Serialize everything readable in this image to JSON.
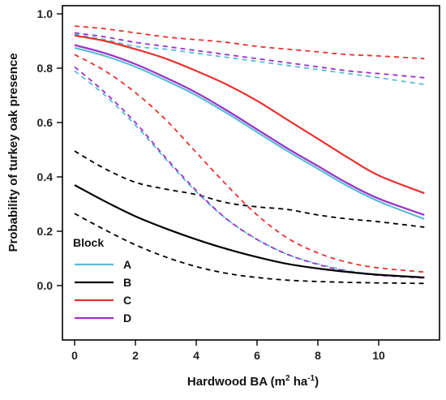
{
  "chart_data": {
    "type": "line",
    "xlabel": {
      "prefix": "Hardwood BA (m",
      "sup1": "2",
      "middle": " ha",
      "sup2": "-1",
      "suffix": ")"
    },
    "ylabel": "Probability of turkey oak presence",
    "xlim": [
      -0.4,
      12
    ],
    "ylim": [
      -0.2,
      1.03
    ],
    "xticks": [
      0,
      2,
      4,
      6,
      8,
      10
    ],
    "yticks": [
      0.0,
      0.2,
      0.4,
      0.6,
      0.8,
      1.0
    ],
    "ytick_labels": [
      "0.0",
      "0.2",
      "0.4",
      "0.6",
      "0.8",
      "1.0"
    ],
    "grid": false,
    "legend": {
      "title": "Block",
      "position": "bottom-left",
      "entries": [
        {
          "label": "A",
          "color": "#5bbcd6"
        },
        {
          "label": "B",
          "color": "#000000"
        },
        {
          "label": "C",
          "color": "#e8312f"
        },
        {
          "label": "D",
          "color": "#9b30c8"
        }
      ]
    },
    "x": [
      0,
      1,
      2,
      3,
      4,
      5,
      6,
      7,
      8,
      9,
      10,
      11.5
    ],
    "series": [
      {
        "name": "A",
        "color": "#5bbcd6",
        "fit": [
          0.875,
          0.845,
          0.805,
          0.755,
          0.7,
          0.635,
          0.565,
          0.495,
          0.43,
          0.365,
          0.31,
          0.245
        ],
        "lower": [
          0.79,
          0.7,
          0.59,
          0.465,
          0.345,
          0.245,
          0.17,
          0.115,
          0.08,
          0.055,
          0.04,
          0.03
        ],
        "upper": [
          0.925,
          0.905,
          0.88,
          0.87,
          0.855,
          0.84,
          0.825,
          0.81,
          0.795,
          0.78,
          0.765,
          0.74
        ]
      },
      {
        "name": "B",
        "color": "#000000",
        "fit": [
          0.37,
          0.31,
          0.255,
          0.21,
          0.17,
          0.135,
          0.105,
          0.08,
          0.063,
          0.05,
          0.04,
          0.03
        ],
        "lower": [
          0.265,
          0.205,
          0.15,
          0.105,
          0.07,
          0.045,
          0.03,
          0.02,
          0.015,
          0.012,
          0.01,
          0.008
        ],
        "upper": [
          0.495,
          0.43,
          0.38,
          0.355,
          0.335,
          0.305,
          0.29,
          0.28,
          0.26,
          0.245,
          0.235,
          0.215
        ]
      },
      {
        "name": "C",
        "color": "#e8312f",
        "fit": [
          0.92,
          0.9,
          0.87,
          0.835,
          0.79,
          0.74,
          0.68,
          0.61,
          0.54,
          0.47,
          0.405,
          0.34
        ],
        "lower": [
          0.85,
          0.79,
          0.71,
          0.61,
          0.49,
          0.37,
          0.26,
          0.175,
          0.12,
          0.085,
          0.065,
          0.05
        ],
        "upper": [
          0.955,
          0.945,
          0.93,
          0.915,
          0.905,
          0.895,
          0.88,
          0.87,
          0.86,
          0.85,
          0.845,
          0.835
        ]
      },
      {
        "name": "D",
        "color": "#9b30c8",
        "fit": [
          0.885,
          0.855,
          0.815,
          0.765,
          0.71,
          0.645,
          0.575,
          0.505,
          0.44,
          0.375,
          0.32,
          0.26
        ],
        "lower": [
          0.805,
          0.71,
          0.6,
          0.47,
          0.35,
          0.245,
          0.17,
          0.115,
          0.078,
          0.052,
          0.038,
          0.028
        ],
        "upper": [
          0.93,
          0.915,
          0.895,
          0.88,
          0.865,
          0.85,
          0.835,
          0.82,
          0.805,
          0.79,
          0.78,
          0.765
        ]
      }
    ]
  }
}
